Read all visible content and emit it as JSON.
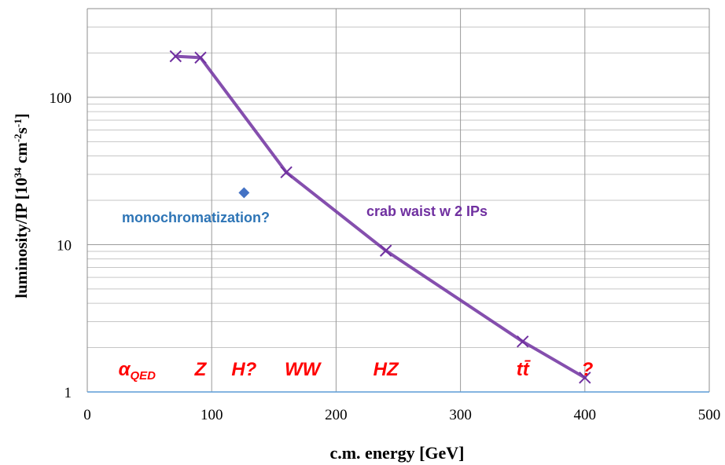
{
  "chart_data": {
    "type": "line",
    "xlabel": "c.m. energy [GeV]",
    "ylabel_parts": [
      "luminosity/IP [10",
      "34",
      " cm",
      "-2",
      "s",
      "-1",
      "]"
    ],
    "xlim": [
      0,
      500
    ],
    "ylim": [
      1,
      400
    ],
    "yscale": "log",
    "grid": true,
    "x_ticks": [
      0,
      100,
      200,
      300,
      400,
      500
    ],
    "y_ticks": [
      1,
      10,
      100
    ],
    "series": [
      {
        "name": "crab waist w 2 IPs",
        "x": [
          71,
          91,
          160,
          240,
          350,
          400
        ],
        "y": [
          190,
          186,
          31,
          9.1,
          2.2,
          1.25
        ],
        "color": "#7030A0",
        "marker": "x"
      },
      {
        "name": "monochromatization?",
        "x": [
          126
        ],
        "y": [
          22.5
        ],
        "color": "#4472C4",
        "marker": "diamond"
      }
    ],
    "annotations": [
      {
        "text": "monochromatization?",
        "color": "#2E75B6"
      },
      {
        "text": "crab waist w 2 IPs",
        "color": "#7030A0"
      }
    ],
    "process_labels": [
      {
        "id": "aqed",
        "text": "α",
        "sub": "QED",
        "x": 40
      },
      {
        "id": "z",
        "text": "Z",
        "x": 91
      },
      {
        "id": "h",
        "text": "H?",
        "x": 126
      },
      {
        "id": "ww",
        "text": "WW",
        "x": 173
      },
      {
        "id": "hz",
        "text": "HZ",
        "x": 240
      },
      {
        "id": "tt",
        "text": "tt̄",
        "x": 350
      },
      {
        "id": "q",
        "text": "?",
        "x": 402
      }
    ],
    "label_color": "#FF0000"
  }
}
